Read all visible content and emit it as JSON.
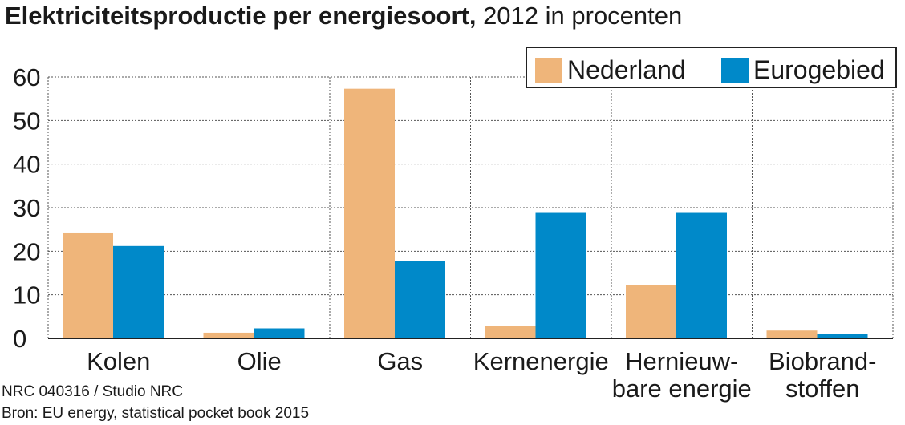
{
  "title": {
    "bold": "Elektriciteitsproductie per energiesoort,",
    "normal": " 2012 in procenten"
  },
  "footer": {
    "credit": "NRC 040316 / Studio NRC",
    "source": "Bron: EU energy, statistical pocket book 2015"
  },
  "colors": {
    "nederland": "#efb57a",
    "eurogebied": "#0089c9",
    "grid": "#555555",
    "axis": "#222222"
  },
  "chart_data": {
    "type": "bar",
    "title": "Elektriciteitsproductie per energiesoort, 2012 in procenten",
    "categories": [
      [
        "Kolen"
      ],
      [
        "Olie"
      ],
      [
        "Gas"
      ],
      [
        "Kernenergie"
      ],
      [
        "Hernieuw-",
        "bare energie"
      ],
      [
        "Biobrand-",
        "stoffen"
      ]
    ],
    "series": [
      {
        "name": "Nederland",
        "values": [
          24.3,
          1.3,
          57.3,
          2.8,
          12.2,
          1.8
        ]
      },
      {
        "name": "Eurogebied",
        "values": [
          21.2,
          2.3,
          17.8,
          28.8,
          28.8,
          1.0
        ]
      }
    ],
    "yticks": [
      0,
      10,
      20,
      30,
      40,
      50,
      60
    ],
    "ylim": [
      0,
      60
    ],
    "grid": true,
    "legend": "top-right"
  }
}
